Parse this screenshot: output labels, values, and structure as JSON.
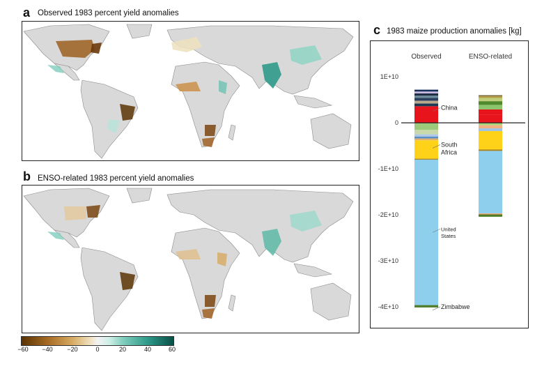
{
  "panel_a": {
    "letter": "a",
    "title": "Observed 1983 percent yield anomalies"
  },
  "panel_b": {
    "letter": "b",
    "title": "ENSO-related 1983 percent yield anomalies"
  },
  "panel_c": {
    "letter": "c",
    "title": "1983 maize production anomalies [kg]"
  },
  "colorbar": {
    "ticks": [
      "−60",
      "−40",
      "−20",
      "0",
      "20",
      "40",
      "60"
    ],
    "colors": [
      "#5a3303",
      "#d6a961",
      "#f3f3f3",
      "#7fcdbd",
      "#0a4f45"
    ]
  },
  "colors": {
    "land": "#d9d9d9",
    "border": "#8a8a8a",
    "brown": "#b07a3a",
    "teal": "#3fa396"
  },
  "chart_data": {
    "type": "bar",
    "title": "1983 maize production anomalies [kg]",
    "categories": [
      "Observed",
      "ENSO-related"
    ],
    "ylim": [
      -43000000000.0,
      13500000000.0
    ],
    "ytick_values": [
      10000000000.0,
      0,
      -10000000000.0,
      -20000000000.0,
      -30000000000.0,
      -40000000000.0
    ],
    "ytick_labels": [
      "1E+10",
      "0",
      "-1E+10",
      "-2E+10",
      "-3E+10",
      "-4E+10"
    ],
    "stacks": [
      {
        "name": "Observed",
        "positive": [
          {
            "value": 3600000000.0,
            "color": "#e8141b"
          },
          {
            "value": 600000000.0,
            "color": "#1e3a52"
          },
          {
            "value": 600000000.0,
            "color": "#b9a88a"
          },
          {
            "value": 600000000.0,
            "color": "#2a3f5f"
          },
          {
            "value": 500000000.0,
            "color": "#6d8c9a"
          },
          {
            "value": 500000000.0,
            "color": "#1f2d45"
          },
          {
            "value": 400000000.0,
            "color": "#c7b7e0"
          },
          {
            "value": 400000000.0,
            "color": "#16305a"
          }
        ],
        "negative": [
          {
            "value": -1500000000.0,
            "color": "#9cc97a"
          },
          {
            "value": -1000000000.0,
            "color": "#c7d9a8"
          },
          {
            "value": -500000000.0,
            "color": "#aec9e8"
          },
          {
            "value": -400000000.0,
            "color": "#5b8ec4"
          },
          {
            "value": -400000000.0,
            "color": "#e0b070"
          },
          {
            "value": -4000000000.0,
            "color": "#ffd21a"
          },
          {
            "value": -200000000.0,
            "color": "#a57f1c"
          },
          {
            "value": -31600000000.0,
            "color": "#8ecfed"
          },
          {
            "value": -500000000.0,
            "color": "#4e7c2a"
          }
        ]
      },
      {
        "name": "ENSO-related",
        "positive": [
          {
            "value": 1700000000.0,
            "color": "#e8141b"
          },
          {
            "value": 1200000000.0,
            "color": "#e8141b"
          },
          {
            "value": 1000000000.0,
            "color": "#8cc46c"
          },
          {
            "value": 800000000.0,
            "color": "#4f8a2d"
          },
          {
            "value": 700000000.0,
            "color": "#c0cf7a"
          },
          {
            "value": 400000000.0,
            "color": "#b8a04a"
          },
          {
            "value": 200000000.0,
            "color": "#6a5a2a"
          }
        ],
        "negative": [
          {
            "value": -500000000.0,
            "color": "#a5d77f"
          },
          {
            "value": -700000000.0,
            "color": "#f1b183"
          },
          {
            "value": -600000000.0,
            "color": "#9fc3e6"
          },
          {
            "value": -4000000000.0,
            "color": "#ffd21a"
          },
          {
            "value": -300000000.0,
            "color": "#a57f1c"
          },
          {
            "value": -13600000000.0,
            "color": "#8ecfed"
          },
          {
            "value": -200000000.0,
            "color": "#f0a15a"
          },
          {
            "value": -500000000.0,
            "color": "#4e7c2a"
          }
        ]
      }
    ],
    "annotations": [
      {
        "text": "China",
        "stack": 0,
        "value": 2800000000.0
      },
      {
        "text": "South Africa",
        "stack": 0,
        "value": -5200000000.0
      },
      {
        "text": "United States",
        "stack": 0,
        "value": -23500000000.0
      },
      {
        "text": "Zimbabwe",
        "stack": 0,
        "value": -40400000000.0
      }
    ]
  }
}
